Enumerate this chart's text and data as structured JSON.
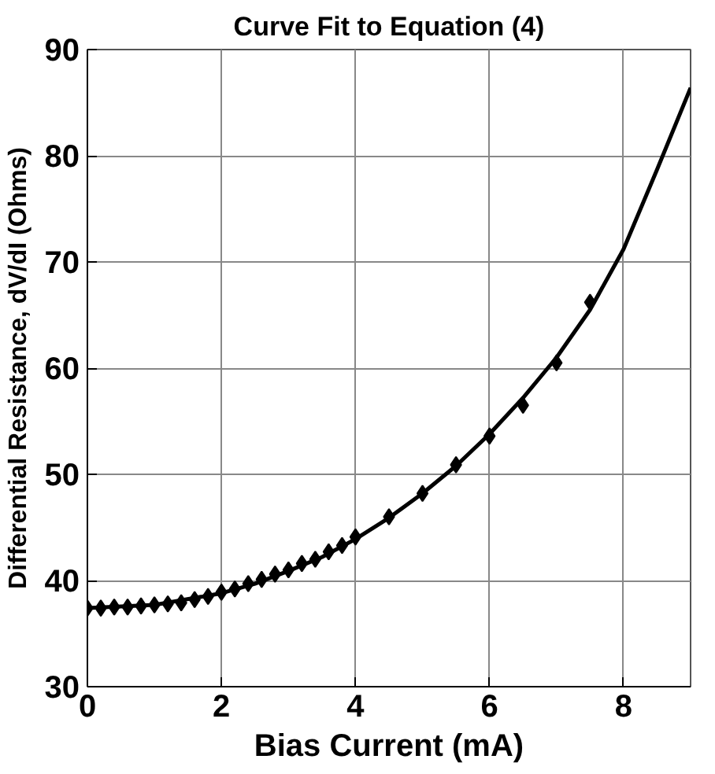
{
  "chart_data": {
    "type": "scatter",
    "title": "Curve Fit to Equation (4)",
    "xlabel": "Bias Current (mA)",
    "ylabel": "Differential Resistance, dV/dI (Ohms)",
    "series": [
      {
        "color": "#000000",
        "marker": "diamond",
        "x": [
          0,
          0.2,
          0.4,
          0.6,
          0.8,
          1.0,
          1.2,
          1.4,
          1.6,
          1.8,
          2.0,
          2.2,
          2.4,
          2.6,
          2.8,
          3.0,
          3.2,
          3.4,
          3.6,
          3.8,
          4.0,
          4.5,
          5.0,
          5.5,
          6.0,
          6.5,
          7.0,
          7.5
        ],
        "values": [
          37.4,
          37.4,
          37.5,
          37.5,
          37.6,
          37.7,
          37.8,
          37.9,
          38.2,
          38.5,
          38.9,
          39.2,
          39.7,
          40.1,
          40.6,
          41.0,
          41.6,
          42.0,
          42.7,
          43.3,
          44.1,
          46.0,
          48.2,
          50.9,
          53.6,
          56.5,
          60.5,
          66.2
        ]
      },
      {
        "type": "line",
        "color": "#000000",
        "line_style": "solid",
        "x": [
          0,
          1,
          2,
          2.5,
          3,
          3.5,
          4,
          4.5,
          5,
          5.5,
          6,
          6.5,
          7,
          7.5,
          8,
          8.5,
          9
        ],
        "values": [
          37.4,
          37.7,
          38.8,
          39.7,
          40.9,
          42.2,
          43.9,
          45.9,
          48.2,
          50.8,
          53.8,
          57.2,
          61.0,
          65.5,
          71.2,
          78.7,
          86.4
        ]
      }
    ],
    "xlim": [
      0,
      9
    ],
    "ylim": [
      30,
      90
    ],
    "xticks": [
      0,
      2,
      4,
      6,
      8
    ],
    "yticks": [
      30,
      40,
      50,
      60,
      70,
      80,
      90
    ],
    "grid": true
  }
}
